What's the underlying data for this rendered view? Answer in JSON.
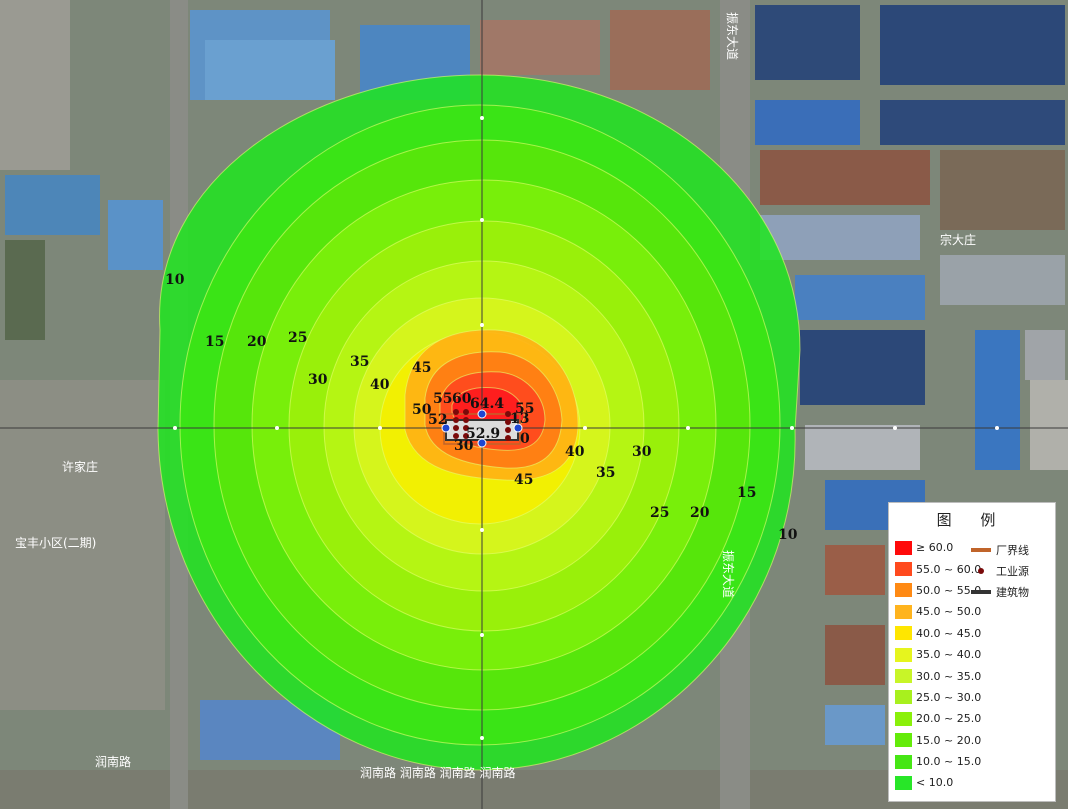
{
  "map": {
    "contour_labels": [
      "10",
      "15",
      "20",
      "25",
      "30",
      "35",
      "40",
      "45",
      "50",
      "52",
      "55",
      "60",
      "64.4",
      "55",
      "13",
      "0",
      "52.9",
      "30",
      "40",
      "35",
      "30",
      "45",
      "25",
      "20",
      "15",
      "10"
    ],
    "place_labels": [
      "宗大庄",
      "许家庄",
      "宝丰小区(二期)",
      "润南路",
      "润南路 润南路 润南路 润南路",
      "振东大道",
      "振东大道"
    ],
    "colors": {
      "c60": "#ff1e1e",
      "c55": "#ff4a1e",
      "c50": "#ff7a14",
      "c45": "#ffb014",
      "c40": "#f5f000",
      "c35": "#d8f51e",
      "c30": "#b8f514",
      "c25": "#9cf00a",
      "c20": "#7cf00a",
      "c15": "#5ae60a",
      "c10": "#3ce614",
      "c0": "#1ee61e",
      "boundary": "#c0642a",
      "source": "#7a0a0a",
      "building": "#333333"
    }
  },
  "legend": {
    "title": "图 例",
    "ranges": [
      "≥ 60.0",
      "55.0 ~ 60.0",
      "50.0 ~ 55.0",
      "45.0 ~ 50.0",
      "40.0 ~ 45.0",
      "35.0 ~ 40.0",
      "30.0 ~ 35.0",
      "25.0 ~ 30.0",
      "20.0 ~ 25.0",
      "15.0 ~ 20.0",
      "10.0 ~ 15.0",
      "< 10.0"
    ],
    "range_colors": [
      "#ff0a0a",
      "#ff4a1e",
      "#ff8a14",
      "#ffb41e",
      "#ffe600",
      "#e6f51e",
      "#c8f528",
      "#a8f01e",
      "#8af00a",
      "#64eb0a",
      "#46e614",
      "#28e628"
    ],
    "symbols": [
      {
        "label": "厂界线",
        "icon": "boundary-line"
      },
      {
        "label": "工业源",
        "icon": "source-dot"
      },
      {
        "label": "建筑物",
        "icon": "building-line"
      }
    ]
  }
}
